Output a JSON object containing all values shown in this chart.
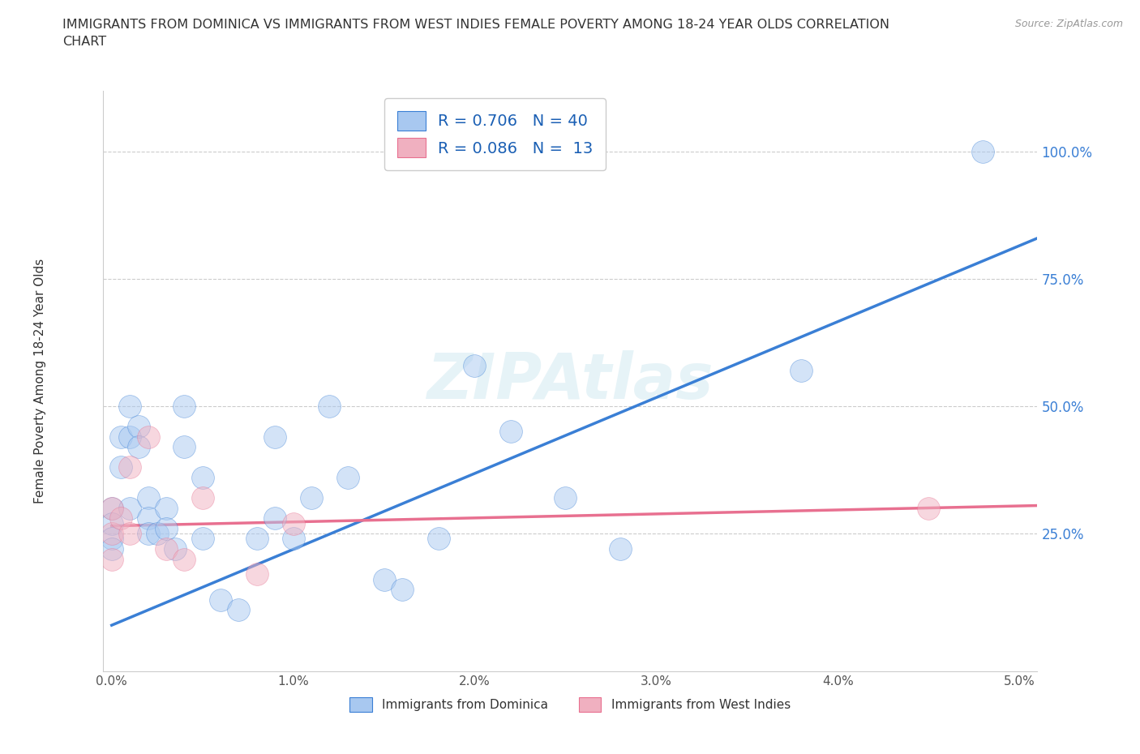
{
  "title_line1": "IMMIGRANTS FROM DOMINICA VS IMMIGRANTS FROM WEST INDIES FEMALE POVERTY AMONG 18-24 YEAR OLDS CORRELATION",
  "title_line2": "CHART",
  "source": "Source: ZipAtlas.com",
  "ylabel": "Female Poverty Among 18-24 Year Olds",
  "xlim": [
    -0.0005,
    0.051
  ],
  "ylim": [
    -0.02,
    1.12
  ],
  "xticks": [
    0.0,
    0.01,
    0.02,
    0.03,
    0.04,
    0.05
  ],
  "xticklabels": [
    "0.0%",
    "1.0%",
    "2.0%",
    "3.0%",
    "4.0%",
    "5.0%"
  ],
  "yticks": [
    0.25,
    0.5,
    0.75,
    1.0
  ],
  "yticklabels": [
    "25.0%",
    "50.0%",
    "75.0%",
    "100.0%"
  ],
  "blue_color": "#a8c8f0",
  "pink_color": "#f0b0c0",
  "blue_line_color": "#3a7fd5",
  "pink_line_color": "#e87090",
  "R_blue": 0.706,
  "N_blue": 40,
  "R_pink": 0.086,
  "N_pink": 13,
  "legend_label_blue": "Immigrants from Dominica",
  "legend_label_pink": "Immigrants from West Indies",
  "blue_scatter_x": [
    0.0,
    0.0,
    0.0,
    0.0,
    0.0005,
    0.0005,
    0.001,
    0.001,
    0.001,
    0.0015,
    0.0015,
    0.002,
    0.002,
    0.002,
    0.0025,
    0.003,
    0.003,
    0.0035,
    0.004,
    0.004,
    0.005,
    0.005,
    0.006,
    0.007,
    0.008,
    0.009,
    0.009,
    0.01,
    0.011,
    0.012,
    0.013,
    0.015,
    0.016,
    0.018,
    0.02,
    0.022,
    0.025,
    0.028,
    0.038,
    0.048
  ],
  "blue_scatter_y": [
    0.3,
    0.27,
    0.24,
    0.22,
    0.44,
    0.38,
    0.5,
    0.44,
    0.3,
    0.46,
    0.42,
    0.32,
    0.28,
    0.25,
    0.25,
    0.3,
    0.26,
    0.22,
    0.5,
    0.42,
    0.36,
    0.24,
    0.12,
    0.1,
    0.24,
    0.44,
    0.28,
    0.24,
    0.32,
    0.5,
    0.36,
    0.16,
    0.14,
    0.24,
    0.58,
    0.45,
    0.32,
    0.22,
    0.57,
    1.0
  ],
  "pink_scatter_x": [
    0.0,
    0.0,
    0.0,
    0.0005,
    0.001,
    0.001,
    0.002,
    0.003,
    0.004,
    0.005,
    0.008,
    0.01,
    0.045
  ],
  "pink_scatter_y": [
    0.3,
    0.25,
    0.2,
    0.28,
    0.38,
    0.25,
    0.44,
    0.22,
    0.2,
    0.32,
    0.17,
    0.27,
    0.3
  ],
  "blue_line_x0": 0.0,
  "blue_line_x1": 0.051,
  "blue_line_y0": 0.07,
  "blue_line_y1": 0.83,
  "pink_line_x0": 0.0,
  "pink_line_x1": 0.051,
  "pink_line_y0": 0.265,
  "pink_line_y1": 0.305,
  "figsize": [
    14.06,
    9.3
  ],
  "dpi": 100
}
